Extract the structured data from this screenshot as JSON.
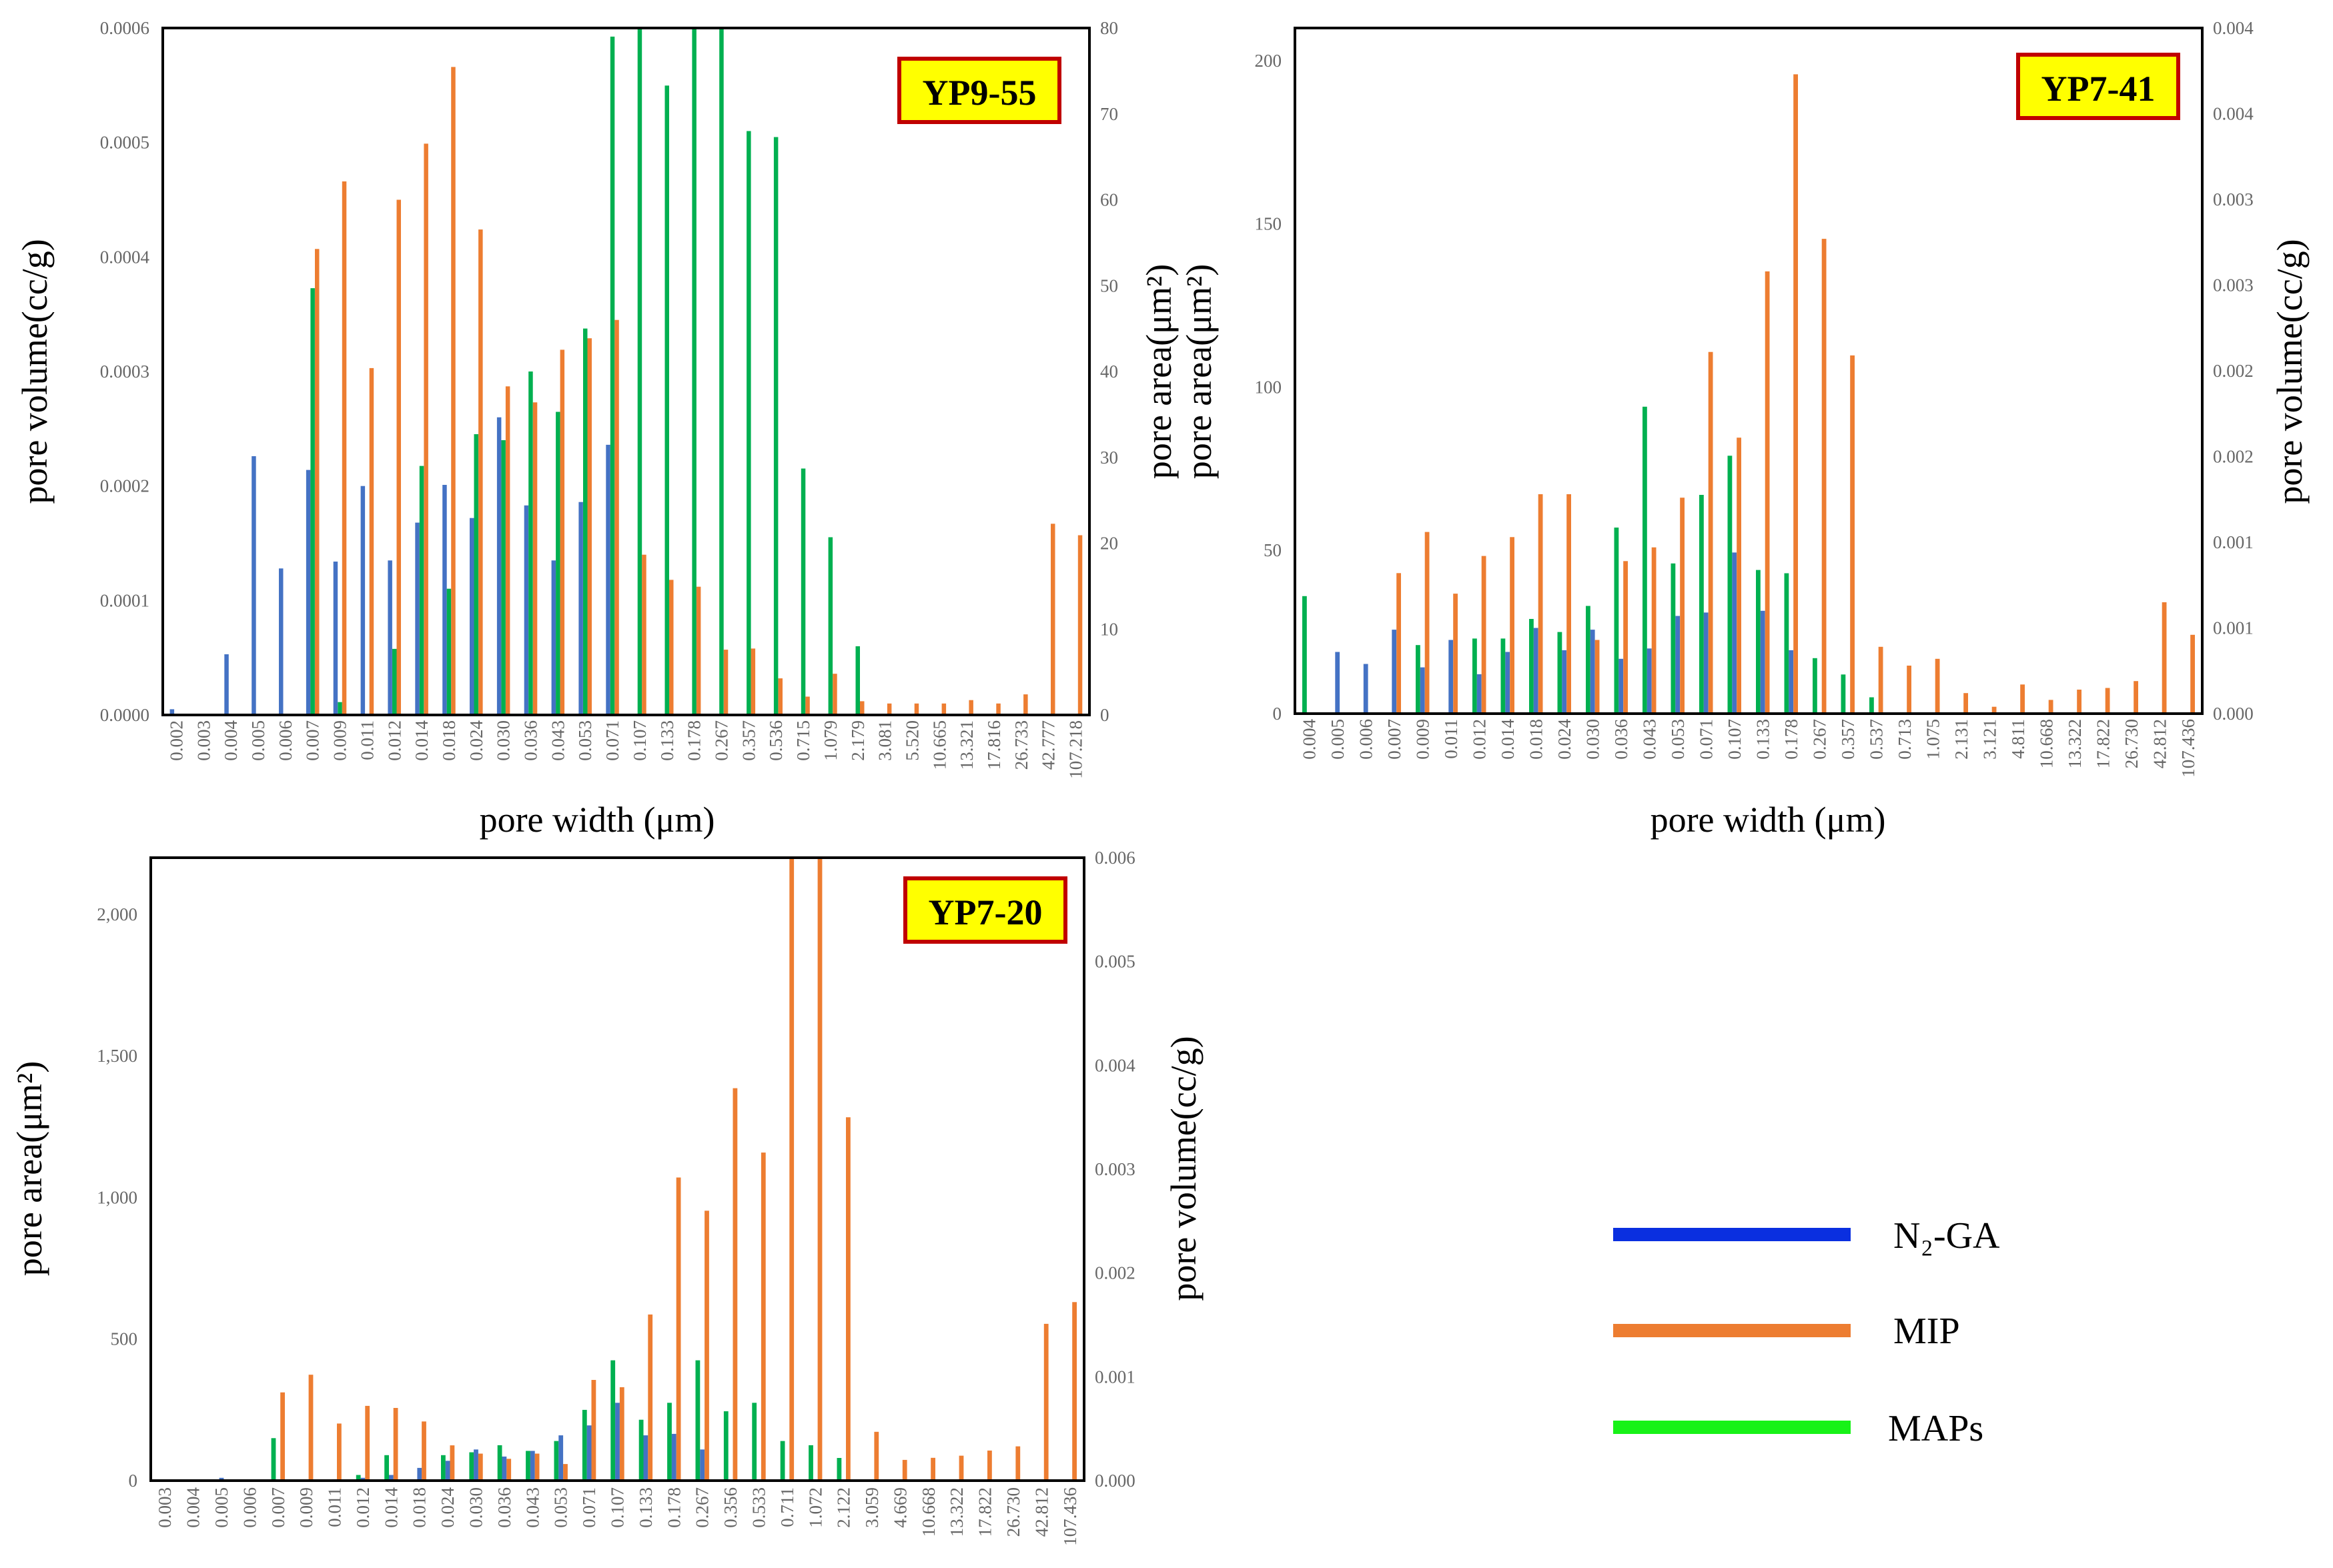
{
  "colors": {
    "n2ga": "#4472C4",
    "mip": "#ED7D31",
    "maps": "#00B050",
    "legend_n2ga": "#0A2FE0",
    "legend_mip": "#ED7D31",
    "legend_maps": "#17F217",
    "badge_fill": "#FFFF00",
    "badge_border": "#C00000",
    "axis": "#000000",
    "tick_text": "#666666"
  },
  "legend": {
    "items": [
      {
        "label": "N₂-GA",
        "series": "N2-GA"
      },
      {
        "label": "MIP",
        "series": "MIP"
      },
      {
        "label": "MAPs",
        "series": "MAPs"
      }
    ]
  },
  "chart_data": [
    {
      "id": "yp9-55",
      "type": "bar",
      "title": "YP9-55",
      "xlabel": "pore width (μm)",
      "ylabel_left": "pore volume(cc/g)",
      "ylabel_right": "pore area(μm²)",
      "left_ylim": [
        0,
        0.0006
      ],
      "left_yticks": [
        "0.0006",
        "0.0005",
        "0.0004",
        "0.0003",
        "0.0002",
        "0.0001",
        "0.0000"
      ],
      "right_ylim": [
        0,
        80
      ],
      "right_yticks": [
        "80",
        "70",
        "60",
        "50",
        "40",
        "30",
        "20",
        "10",
        "0"
      ],
      "categories": [
        "0.002",
        "0.003",
        "0.004",
        "0.005",
        "0.006",
        "0.007",
        "0.009",
        "0.011",
        "0.012",
        "0.014",
        "0.018",
        "0.024",
        "0.030",
        "0.036",
        "0.043",
        "0.053",
        "0.071",
        "0.107",
        "0.133",
        "0.178",
        "0.267",
        "0.357",
        "0.536",
        "0.715",
        "1.079",
        "2.179",
        "3.081",
        "5.520",
        "10.665",
        "13.321",
        "17.816",
        "26.733",
        "42.777",
        "107.218"
      ],
      "series": [
        {
          "name": "N2-GA",
          "axis": "left",
          "values": [
            5e-06,
            0,
            5.3e-05,
            0.000226,
            0.000128,
            0.000214,
            0.000134,
            0.0002,
            0.000135,
            0.000168,
            0.000201,
            0.000172,
            0.00026,
            0.000183,
            0.000135,
            0.000186,
            0.000236,
            0,
            0,
            0,
            0,
            0,
            0,
            0,
            0,
            0,
            0,
            0,
            0,
            0,
            0,
            0,
            0,
            0
          ]
        },
        {
          "name": "MAPs",
          "axis": "right",
          "values": [
            0,
            0,
            0,
            0,
            0,
            49.7,
            1.5,
            0,
            7.7,
            29.0,
            14.7,
            32.7,
            32.0,
            40.0,
            35.3,
            45.0,
            79.0,
            80,
            73.3,
            80,
            80,
            68.0,
            67.3,
            28.7,
            20.7,
            8.0,
            0,
            0,
            0,
            0,
            0,
            0,
            0,
            0
          ]
        },
        {
          "name": "MIP",
          "axis": "left",
          "values": [
            0,
            0,
            0,
            0,
            0,
            0.000407,
            0.000466,
            0.000303,
            0.00045,
            0.000499,
            0.000566,
            0.000424,
            0.000287,
            0.000273,
            0.000319,
            0.000329,
            0.000345,
            0.00014,
            0.000118,
            0.000112,
            5.7e-05,
            5.8e-05,
            3.2e-05,
            1.6e-05,
            3.6e-05,
            1.2e-05,
            1e-05,
            1e-05,
            1e-05,
            1.3e-05,
            1e-05,
            1.8e-05,
            0.000167,
            0.000157
          ]
        }
      ]
    },
    {
      "id": "yp7-41",
      "type": "bar",
      "title": "YP7-41",
      "xlabel": "pore width (μm)",
      "ylabel_left": "pore area(μm²)",
      "ylabel_right": "pore volume(cc/g)",
      "left_ylim": [
        0,
        210
      ],
      "left_yticks": [
        "200",
        "150",
        "100",
        "50",
        "0"
      ],
      "right_ylim": [
        0,
        0.004
      ],
      "right_yticks": [
        "0.004",
        "0.004",
        "0.003",
        "0.003",
        "0.002",
        "0.002",
        "0.001",
        "0.001",
        "0.000"
      ],
      "categories": [
        "0.004",
        "0.005",
        "0.006",
        "0.007",
        "0.009",
        "0.011",
        "0.012",
        "0.014",
        "0.018",
        "0.024",
        "0.030",
        "0.036",
        "0.043",
        "0.053",
        "0.071",
        "0.107",
        "0.133",
        "0.178",
        "0.267",
        "0.357",
        "0.537",
        "0.713",
        "1.075",
        "2.131",
        "3.121",
        "4.811",
        "10.668",
        "13.322",
        "17.822",
        "26.730",
        "42.812",
        "107.436"
      ],
      "series": [
        {
          "name": "MAPs",
          "axis": "left",
          "values": [
            36,
            0,
            0,
            0,
            21,
            0,
            23,
            23,
            29,
            25,
            33,
            57,
            94,
            46,
            67,
            79,
            44,
            43,
            17,
            12,
            5,
            0,
            0,
            0,
            0,
            0,
            0,
            0,
            0,
            0,
            0,
            0
          ]
        },
        {
          "name": "N2-GA",
          "axis": "right",
          "values": [
            0,
            0.00036,
            0.00029,
            0.00049,
            0.00027,
            0.00043,
            0.00023,
            0.00036,
            0.0005,
            0.00037,
            0.00049,
            0.00032,
            0.00038,
            0.00057,
            0.00059,
            0.00094,
            0.0006,
            0.00037,
            0,
            0,
            0,
            0,
            0,
            0,
            0,
            0,
            0,
            0,
            0,
            0,
            0,
            0
          ]
        },
        {
          "name": "MIP",
          "axis": "right",
          "values": [
            0,
            0,
            0,
            0.00082,
            0.00106,
            0.0007,
            0.00092,
            0.00103,
            0.00128,
            0.00128,
            0.00043,
            0.00089,
            0.00097,
            0.00126,
            0.00211,
            0.00161,
            0.00258,
            0.00373,
            0.00277,
            0.00209,
            0.00039,
            0.00028,
            0.00032,
            0.00012,
            4e-05,
            0.00017,
            8e-05,
            0.00014,
            0.00015,
            0.00019,
            0.00065,
            0.00046
          ]
        }
      ]
    },
    {
      "id": "yp7-20",
      "type": "bar",
      "title": "YP7-20",
      "xlabel": "",
      "ylabel_left": "pore area(μm²)",
      "ylabel_right": "pore volume(cc/g)",
      "left_ylim": [
        0,
        2200
      ],
      "left_yticks": [
        "2,000",
        "1,500",
        "1,000",
        "500",
        "0"
      ],
      "right_ylim": [
        0,
        0.006
      ],
      "right_yticks": [
        "0.006",
        "0.005",
        "0.004",
        "0.003",
        "0.002",
        "0.001",
        "0.000"
      ],
      "categories": [
        "0.003",
        "0.004",
        "0.005",
        "0.006",
        "0.007",
        "0.009",
        "0.011",
        "0.012",
        "0.014",
        "0.018",
        "0.024",
        "0.030",
        "0.036",
        "0.043",
        "0.053",
        "0.071",
        "0.107",
        "0.133",
        "0.178",
        "0.267",
        "0.356",
        "0.533",
        "0.711",
        "1.072",
        "2.122",
        "3.059",
        "4.669",
        "10.668",
        "13.322",
        "17.822",
        "26.730",
        "42.812",
        "107.436"
      ],
      "series": [
        {
          "name": "MAPs",
          "axis": "left",
          "values": [
            0,
            0,
            0,
            0,
            150,
            0,
            0,
            20,
            90,
            0,
            90,
            100,
            125,
            105,
            140,
            250,
            425,
            215,
            275,
            425,
            245,
            275,
            140,
            125,
            80,
            0,
            0,
            0,
            0,
            0,
            0,
            0,
            0
          ]
        },
        {
          "name": "N2-GA",
          "axis": "left",
          "values": [
            0,
            0,
            10,
            0,
            0,
            0,
            5,
            10,
            20,
            45,
            70,
            110,
            85,
            105,
            160,
            195,
            275,
            160,
            165,
            110,
            0,
            0,
            0,
            0,
            0,
            0,
            0,
            0,
            0,
            0,
            0,
            0,
            0
          ]
        },
        {
          "name": "MIP",
          "axis": "right",
          "values": [
            0,
            0,
            0,
            0,
            0.00085,
            0.00102,
            0.00055,
            0.00072,
            0.0007,
            0.00057,
            0.00034,
            0.00026,
            0.00021,
            0.00026,
            0.00016,
            0.00097,
            0.0009,
            0.0016,
            0.00292,
            0.0026,
            0.00378,
            0.00316,
            0.0062,
            0.0062,
            0.0035,
            0.00047,
            0.0002,
            0.00022,
            0.00024,
            0.00029,
            0.00033,
            0.00151,
            0.00172
          ]
        }
      ]
    }
  ]
}
